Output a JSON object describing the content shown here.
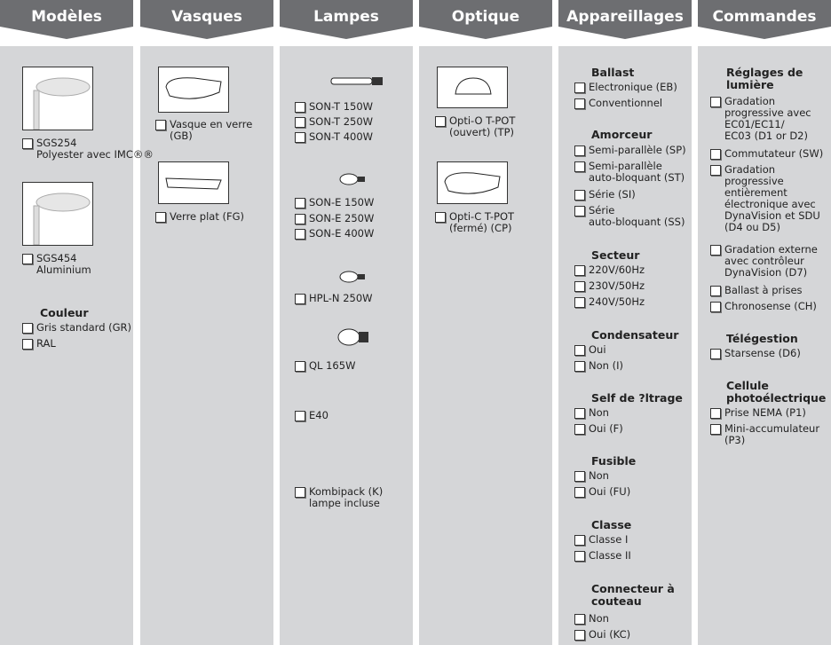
{
  "columns": [
    {
      "header": "Modèles",
      "items": [
        {
          "option": [
            "SGS254",
            "Polyester avec IMC®®"
          ]
        },
        {
          "option": [
            "SGS454",
            "Aluminium"
          ]
        },
        {
          "heading": [
            "Couleur"
          ]
        },
        {
          "option": [
            "Gris standard (GR)"
          ]
        },
        {
          "option": [
            "RAL"
          ]
        }
      ]
    },
    {
      "header": "Vasques",
      "items": [
        {
          "option": [
            "Vasque en verre",
            "(GB)"
          ]
        },
        {
          "option": [
            "Verre plat (FG)"
          ]
        }
      ]
    },
    {
      "header": "Lampes",
      "items": [
        {
          "option": [
            "SON-T 150W"
          ]
        },
        {
          "option": [
            "SON-T 250W"
          ]
        },
        {
          "option": [
            "SON-T 400W"
          ]
        },
        {
          "option": [
            "SON-E 150W"
          ]
        },
        {
          "option": [
            "SON-E 250W"
          ]
        },
        {
          "option": [
            "SON-E 400W"
          ]
        },
        {
          "option": [
            "HPL-N 250W"
          ]
        },
        {
          "option": [
            "QL 165W"
          ]
        },
        {
          "option": [
            "E40"
          ]
        },
        {
          "option": [
            "Kombipack (K)",
            "lampe incluse"
          ]
        }
      ]
    },
    {
      "header": "Optique",
      "items": [
        {
          "option": [
            "Opti-O T-POT",
            "(ouvert) (TP)"
          ]
        },
        {
          "option": [
            "Opti-C T-POT",
            "(fermé) (CP)"
          ]
        }
      ]
    },
    {
      "header": "Appareillages",
      "items": [
        {
          "heading": [
            "Ballast"
          ]
        },
        {
          "option": [
            "Electronique (EB)"
          ]
        },
        {
          "option": [
            "Conventionnel"
          ]
        },
        {
          "heading": [
            "Amorceur"
          ]
        },
        {
          "option": [
            "Semi-parallèle (SP)"
          ]
        },
        {
          "option": [
            "Semi-parallèle",
            "auto-bloquant (ST)"
          ]
        },
        {
          "option": [
            "Série (SI)"
          ]
        },
        {
          "option": [
            "Série",
            "auto-bloquant (SS)"
          ]
        },
        {
          "heading": [
            "Secteur"
          ]
        },
        {
          "option": [
            "220V/60Hz"
          ]
        },
        {
          "option": [
            "230V/50Hz"
          ]
        },
        {
          "option": [
            "240V/50Hz"
          ]
        },
        {
          "heading": [
            "Condensateur"
          ]
        },
        {
          "option": [
            "Oui"
          ]
        },
        {
          "option": [
            "Non (I)"
          ]
        },
        {
          "heading": [
            "Self de ?ltrage"
          ]
        },
        {
          "option": [
            "Non"
          ]
        },
        {
          "option": [
            "Oui (F)"
          ]
        },
        {
          "heading": [
            "Fusible"
          ]
        },
        {
          "option": [
            "Non"
          ]
        },
        {
          "option": [
            "Oui (FU)"
          ]
        },
        {
          "heading": [
            "Classe"
          ]
        },
        {
          "option": [
            "Classe I"
          ]
        },
        {
          "option": [
            "Classe II"
          ]
        },
        {
          "heading": [
            "Connecteur à",
            "couteau"
          ]
        },
        {
          "option": [
            "Non"
          ]
        },
        {
          "option": [
            "Oui (KC)"
          ]
        }
      ]
    },
    {
      "header": "Commandes",
      "items": [
        {
          "heading": [
            "Réglages de",
            "lumière"
          ]
        },
        {
          "option": [
            "Gradation",
            "progressive avec",
            "EC01/EC11/",
            "EC03 (D1 or D2)"
          ]
        },
        {
          "option": [
            "Commutateur (SW)"
          ]
        },
        {
          "option": [
            "Gradation",
            "progressive",
            "entièrement",
            "électronique avec",
            "DynaVision et SDU",
            "(D4 ou D5)"
          ]
        },
        {
          "option": [
            "Gradation externe",
            "avec contrôleur",
            "DynaVision  (D7)"
          ]
        },
        {
          "option": [
            "Ballast à prises"
          ]
        },
        {
          "option": [
            "Chronosense (CH)"
          ]
        },
        {
          "heading": [
            "Télégestion"
          ]
        },
        {
          "option": [
            "Starsense (D6)"
          ]
        },
        {
          "heading": [
            "Cellule",
            "photoélectrique"
          ]
        },
        {
          "option": [
            "Prise NEMA  (P1)"
          ]
        },
        {
          "option": [
            "Mini-accumulateur",
            "(P3)"
          ]
        }
      ]
    }
  ]
}
